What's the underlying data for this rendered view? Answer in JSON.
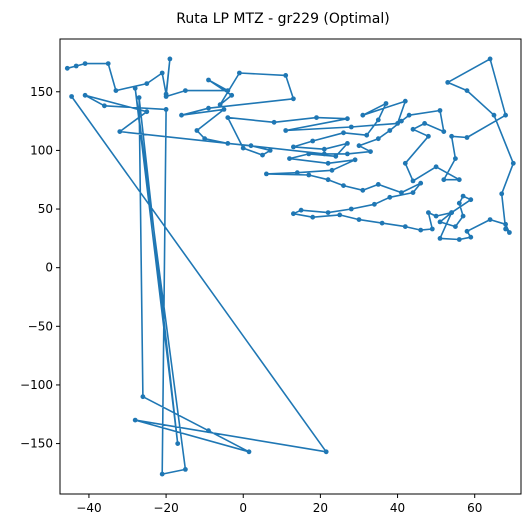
{
  "chart_data": {
    "type": "line",
    "title": "Ruta LP MTZ - gr229 (Optimal)",
    "xlabel": "",
    "ylabel": "",
    "xlim": [
      -47.5,
      72.0
    ],
    "ylim": [
      -193.0,
      195.0
    ],
    "x_ticks": [
      -40,
      -20,
      0,
      20,
      40,
      60
    ],
    "y_ticks": [
      -150,
      -100,
      -50,
      0,
      50,
      100,
      150
    ],
    "grid": false,
    "line_color": "#1f77b4",
    "marker": "circle",
    "series": [
      {
        "points": [
          [
            -45.6,
            170.0
          ],
          [
            -43.3,
            172.0
          ],
          [
            -41.0,
            174.0
          ],
          [
            -35.0,
            174.0
          ],
          [
            -33.0,
            151.0
          ],
          [
            -25.0,
            157.0
          ],
          [
            -21.0,
            166.0
          ],
          [
            -20.0,
            148.0
          ],
          [
            -19.0,
            178.0
          ],
          [
            -20.0,
            146.0
          ],
          [
            -15.0,
            151.0
          ],
          [
            -4.0,
            151.0
          ],
          [
            -9.0,
            160.0
          ],
          [
            -3.0,
            147.0
          ],
          [
            -6.0,
            139.0
          ],
          [
            -1.0,
            166.0
          ],
          [
            11.0,
            164.0
          ],
          [
            13.0,
            144.0
          ],
          [
            -9.0,
            136.0
          ],
          [
            -16.0,
            130.0
          ],
          [
            -5.0,
            135.0
          ],
          [
            -12.0,
            117.0
          ],
          [
            -10.0,
            110.0
          ],
          [
            -4.0,
            106.0
          ],
          [
            2.0,
            104.0
          ],
          [
            7.0,
            100.0
          ],
          [
            5.0,
            96.0
          ],
          [
            0.0,
            102.0
          ],
          [
            -4.0,
            128.0
          ],
          [
            8.0,
            124.0
          ],
          [
            19.0,
            128.0
          ],
          [
            27.0,
            127.0
          ],
          [
            11.0,
            117.0
          ],
          [
            28.0,
            120.0
          ],
          [
            40.0,
            123.0
          ],
          [
            42.0,
            142.0
          ],
          [
            31.0,
            130.0
          ],
          [
            37.0,
            140.0
          ],
          [
            35.0,
            126.0
          ],
          [
            32.0,
            113.0
          ],
          [
            26.0,
            115.0
          ],
          [
            18.0,
            108.0
          ],
          [
            13.0,
            103.0
          ],
          [
            21.0,
            101.0
          ],
          [
            27.0,
            106.0
          ],
          [
            24.0,
            95.0
          ],
          [
            17.0,
            97.0
          ],
          [
            12.0,
            93.0
          ],
          [
            22.0,
            89.0
          ],
          [
            29.0,
            92.0
          ],
          [
            23.0,
            83.0
          ],
          [
            14.0,
            81.0
          ],
          [
            6.0,
            80.0
          ],
          [
            17.0,
            79.0
          ],
          [
            22.0,
            75.0
          ],
          [
            26.0,
            70.0
          ],
          [
            31.0,
            66.0
          ],
          [
            35.0,
            71.0
          ],
          [
            41.0,
            64.0
          ],
          [
            46.0,
            72.0
          ],
          [
            44.0,
            64.0
          ],
          [
            38.0,
            60.0
          ],
          [
            34.0,
            54.0
          ],
          [
            28.0,
            50.0
          ],
          [
            22.0,
            47.0
          ],
          [
            15.0,
            49.0
          ],
          [
            13.0,
            46.0
          ],
          [
            18.0,
            43.0
          ],
          [
            25.0,
            45.0
          ],
          [
            30.0,
            41.0
          ],
          [
            36.0,
            38.0
          ],
          [
            42.0,
            35.0
          ],
          [
            46.0,
            32.0
          ],
          [
            49.0,
            33.0
          ],
          [
            48.0,
            47.0
          ],
          [
            50.0,
            44.0
          ],
          [
            54.0,
            47.0
          ],
          [
            51.0,
            39.0
          ],
          [
            55.0,
            35.0
          ],
          [
            57.0,
            44.0
          ],
          [
            56.0,
            55.0
          ],
          [
            57.0,
            61.0
          ],
          [
            59.0,
            58.0
          ],
          [
            54.0,
            47.0
          ],
          [
            51.0,
            25.0
          ],
          [
            56.0,
            24.0
          ],
          [
            59.0,
            26.0
          ],
          [
            58.0,
            31.0
          ],
          [
            64.0,
            41.0
          ],
          [
            68.0,
            37.0
          ],
          [
            69.0,
            30.0
          ],
          [
            68.0,
            33.0
          ],
          [
            67.0,
            63.0
          ],
          [
            70.0,
            89.0
          ],
          [
            65.0,
            130.0
          ],
          [
            58.0,
            151.0
          ],
          [
            53.0,
            158.0
          ],
          [
            64.0,
            178.0
          ],
          [
            68.0,
            130.0
          ],
          [
            58.0,
            111.0
          ],
          [
            54.0,
            112.0
          ],
          [
            55.0,
            93.0
          ],
          [
            52.0,
            75.0
          ],
          [
            56.0,
            75.0
          ],
          [
            50.0,
            86.0
          ],
          [
            44.0,
            74.0
          ],
          [
            42.0,
            89.0
          ],
          [
            48.0,
            112.0
          ],
          [
            44.0,
            118.0
          ],
          [
            47.0,
            123.0
          ],
          [
            52.0,
            116.0
          ],
          [
            51.0,
            134.0
          ],
          [
            43.0,
            130.0
          ],
          [
            41.0,
            125.0
          ],
          [
            38.0,
            117.0
          ],
          [
            35.0,
            110.0
          ],
          [
            30.0,
            104.0
          ],
          [
            33.0,
            99.0
          ],
          [
            27.0,
            97.0
          ],
          [
            21.0,
            97.0
          ],
          [
            -32.0,
            116.0
          ],
          [
            -25.0,
            133.0
          ],
          [
            -41.0,
            147.0
          ],
          [
            -36.0,
            138.0
          ],
          [
            -20.0,
            135.0
          ],
          [
            -21.0,
            -176.0
          ],
          [
            -15.0,
            -172.0
          ],
          [
            -28.0,
            153.0
          ],
          [
            -17.0,
            -150.0
          ],
          [
            -27.0,
            145.0
          ],
          [
            -26.0,
            -110.0
          ],
          [
            -9.0,
            -139.0
          ],
          [
            1.5,
            -157.0
          ],
          [
            -28.0,
            -130.0
          ],
          [
            21.5,
            -157.0
          ],
          [
            -44.5,
            146.0
          ]
        ]
      }
    ]
  }
}
